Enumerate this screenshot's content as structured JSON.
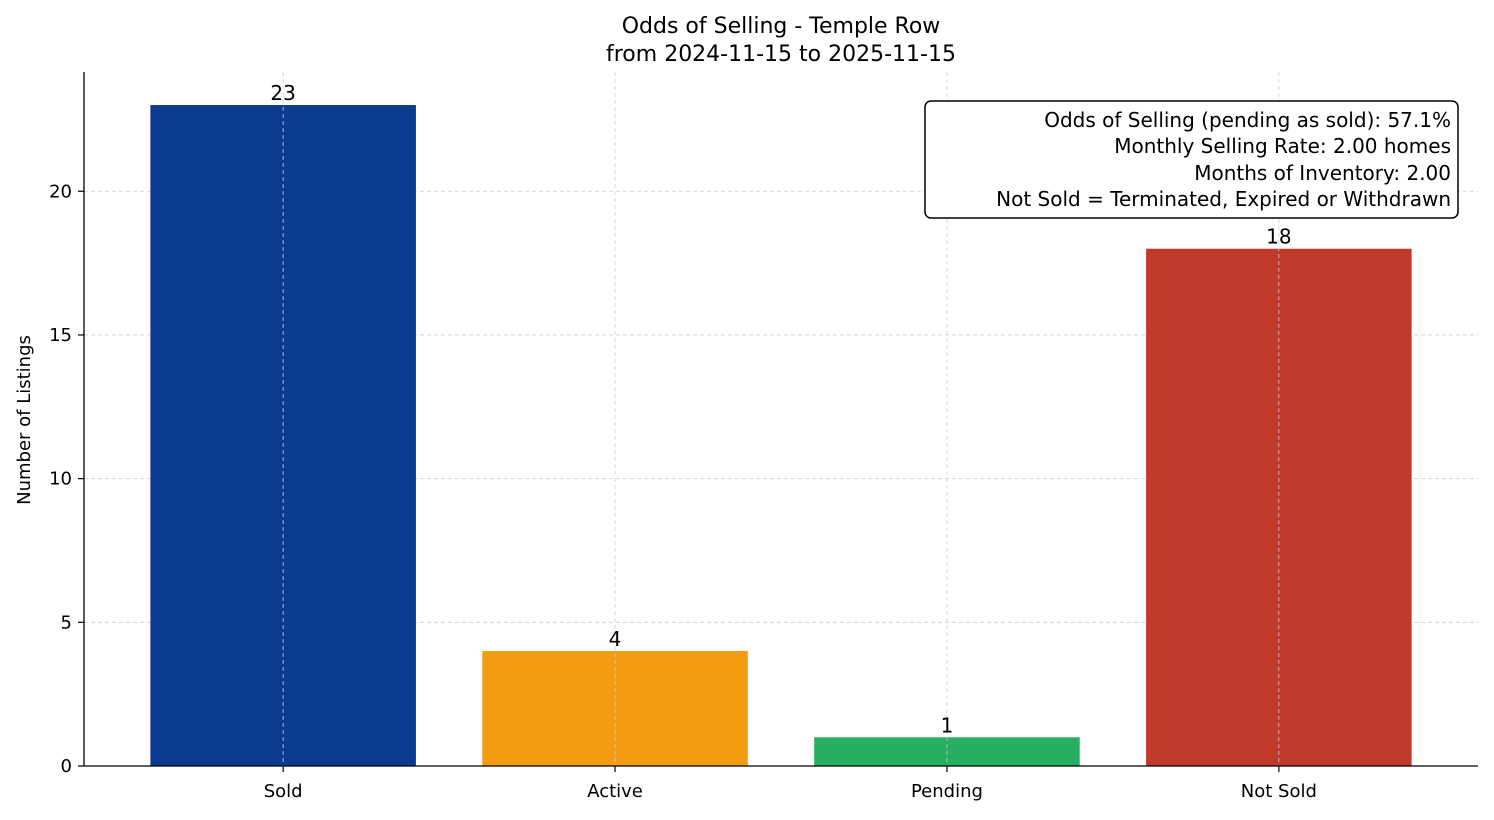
{
  "chart_data": {
    "type": "bar",
    "title": "Odds of Selling - Temple Row",
    "subtitle": "from 2024-11-15 to 2025-11-15",
    "xlabel": "",
    "ylabel": "Number of Listings",
    "categories": [
      "Sold",
      "Active",
      "Pending",
      "Not Sold"
    ],
    "values": [
      23,
      4,
      1,
      18
    ],
    "data_labels": [
      "23",
      "4",
      "1",
      "18"
    ],
    "colors": [
      "#0b3b8f",
      "#f39c12",
      "#27ae60",
      "#c0392b"
    ],
    "ylim": [
      0,
      24.15
    ],
    "yticks": [
      0,
      5,
      10,
      15,
      20
    ],
    "ytick_labels": [
      "0",
      "5",
      "10",
      "15",
      "20"
    ],
    "grid": true,
    "annotation_box": {
      "placement": "top-right",
      "lines": [
        "Odds of Selling (pending as sold): 57.1%",
        "Monthly Selling Rate: 2.00 homes",
        "Months of Inventory: 2.00",
        "Not Sold = Terminated, Expired or Withdrawn"
      ]
    }
  }
}
